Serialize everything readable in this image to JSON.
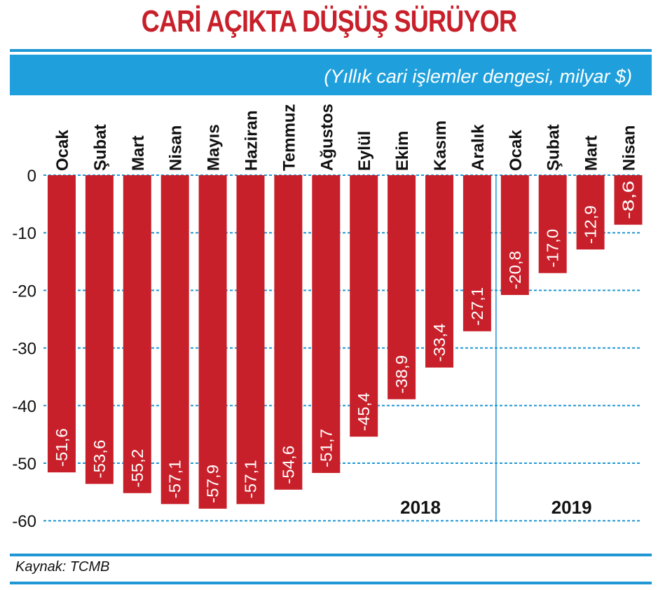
{
  "title": "CARİ AÇIKTA DÜŞÜŞ SÜRÜYOR",
  "subtitle": "(Yıllık cari işlemler dengesi, milyar $)",
  "source": "Kaynak: TCMB",
  "colors": {
    "bar": "#c8202a",
    "accent": "#1fa0dc",
    "grid": "#1f97d4",
    "title": "#c8202a"
  },
  "chart_data": {
    "type": "bar",
    "categories": [
      "Ocak",
      "Şubat",
      "Mart",
      "Nisan",
      "Mayıs",
      "Haziran",
      "Temmuz",
      "Ağustos",
      "Eylül",
      "Ekim",
      "Kasım",
      "Aralık",
      "Ocak",
      "Şubat",
      "Mart",
      "Nisan"
    ],
    "values": [
      -51.6,
      -53.6,
      -55.2,
      -57.1,
      -57.9,
      -57.1,
      -54.6,
      -51.7,
      -45.4,
      -38.9,
      -33.4,
      -27.1,
      -20.8,
      -17.0,
      -12.9,
      -8.6
    ],
    "value_labels": [
      "-51,6",
      "-53,6",
      "-55,2",
      "-57,1",
      "-57,9",
      "-57,1",
      "-54,6",
      "-51,7",
      "-45,4",
      "-38,9",
      "-33,4",
      "-27,1",
      "-20,8",
      "-17,0",
      "-12,9",
      "-8,6"
    ],
    "groups": [
      {
        "label": "2018",
        "count": 12
      },
      {
        "label": "2019",
        "count": 4
      }
    ],
    "yticks": [
      0,
      -10,
      -20,
      -30,
      -40,
      -50,
      -60
    ],
    "ylim": [
      -60,
      0
    ],
    "grid": true,
    "xlabel": "",
    "ylabel": ""
  }
}
